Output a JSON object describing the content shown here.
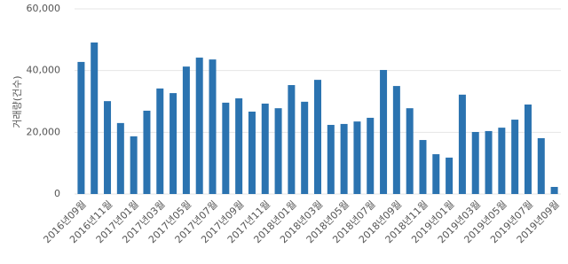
{
  "chart_data": {
    "type": "bar",
    "y_label": "거래량(건수)",
    "categories": [
      "2016년09월",
      null,
      "2016년11월",
      null,
      "2017년01월",
      null,
      "2017년03월",
      null,
      "2017년05월",
      null,
      "2017년07월",
      null,
      "2017년09월",
      null,
      "2017년11월",
      null,
      "2018년01월",
      null,
      "2018년03월",
      null,
      "2018년05월",
      null,
      "2018년07월",
      null,
      "2018년09월",
      null,
      "2018년11월",
      null,
      "2019년01월",
      null,
      "2019년03월",
      null,
      "2019년05월",
      null,
      "2019년07월",
      null,
      "2019년09월"
    ],
    "values": [
      42800,
      49100,
      30100,
      23000,
      18700,
      27000,
      34200,
      32700,
      41300,
      44200,
      43600,
      29600,
      31000,
      26700,
      29300,
      27800,
      35300,
      29900,
      37000,
      22400,
      22700,
      23500,
      24700,
      40200,
      35000,
      27800,
      17500,
      12900,
      11800,
      32200,
      20100,
      20400,
      21500,
      24100,
      29000,
      18100,
      2300
    ],
    "color": "#2b73b0",
    "ylim": [
      0,
      60000
    ],
    "yticks": [
      0,
      {
        "value": 20000,
        "label": "20,000"
      },
      {
        "value": 40000,
        "label": "40,000"
      },
      {
        "value": 60000,
        "label": "60,000"
      }
    ],
    "grid": true
  }
}
